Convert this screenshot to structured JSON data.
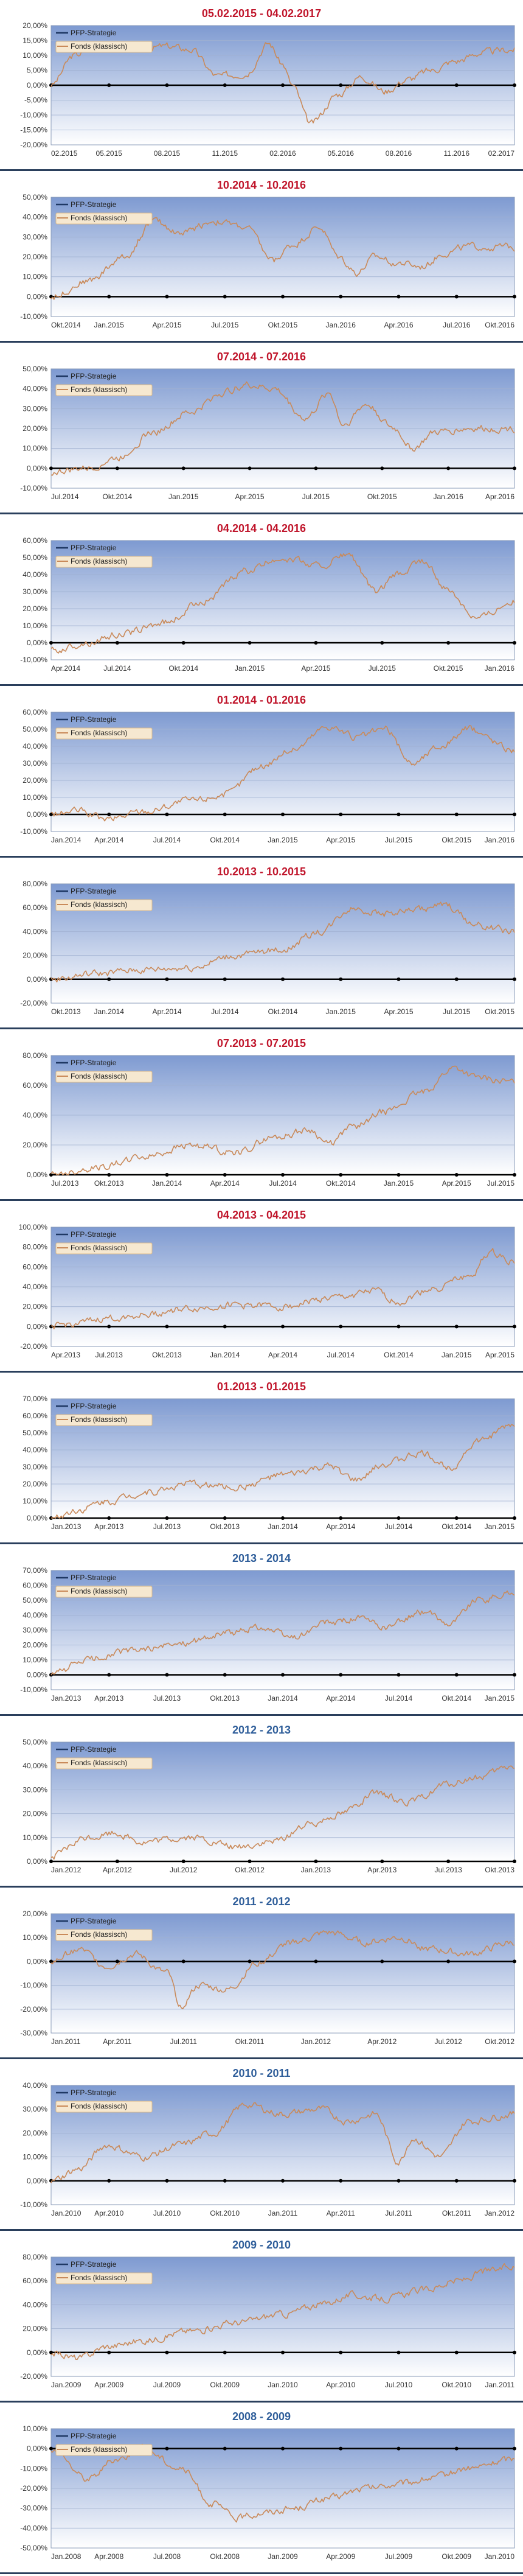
{
  "colors": {
    "fonds": "#c98a5a",
    "pfp": "#1f3864",
    "plot_bg_top": "#7e9ad1",
    "plot_bg_bottom": "#ffffff",
    "title_red": "#c0152b",
    "title_blue": "#2f5e9a"
  },
  "chart_data": [
    {
      "type": "line",
      "title": "05.02.2015 - 04.02.2017",
      "title_color": "red",
      "legend": [
        "PFP-Strategie",
        "Fonds (klassisch)"
      ],
      "x_ticks": [
        "02.2015",
        "05.2015",
        "08.2015",
        "11.2015",
        "02.2016",
        "05.2016",
        "08.2016",
        "11.2016",
        "02.2017"
      ],
      "y_ticks": [
        "20,00%",
        "15,00%",
        "10,00%",
        "5,00%",
        "0,00%",
        "-5,00%",
        "-10,00%",
        "-15,00%",
        "-20,00%"
      ],
      "ylim": [
        -20,
        20
      ],
      "series": [
        {
          "name": "Fonds (klassisch)",
          "x": [
            0,
            0.05,
            0.1,
            0.18,
            0.25,
            0.3,
            0.36,
            0.42,
            0.47,
            0.5,
            0.52,
            0.56,
            0.62,
            0.67,
            0.72,
            0.77,
            0.82,
            0.87,
            0.93,
            1
          ],
          "values": [
            0,
            10,
            14,
            12,
            13,
            12,
            3,
            4,
            14,
            7,
            0,
            -13,
            -3,
            3,
            -2,
            2,
            5,
            8,
            11,
            12
          ]
        }
      ]
    },
    {
      "type": "line",
      "title": "10.2014 - 10.2016",
      "title_color": "red",
      "legend": [
        "PFP-Strategie",
        "Fonds (klassisch)"
      ],
      "x_ticks": [
        "Okt.2014",
        "Jan.2015",
        "Apr.2015",
        "Jul.2015",
        "Okt.2015",
        "Jan.2016",
        "Apr.2016",
        "Jul.2016",
        "Okt.2016"
      ],
      "y_ticks": [
        "50,00%",
        "40,00%",
        "30,00%",
        "20,00%",
        "10,00%",
        "0,00%",
        "-10,00%"
      ],
      "ylim": [
        -10,
        50
      ],
      "series": [
        {
          "name": "Fonds (klassisch)",
          "x": [
            0,
            0.08,
            0.16,
            0.22,
            0.28,
            0.35,
            0.42,
            0.48,
            0.52,
            0.58,
            0.62,
            0.66,
            0.7,
            0.75,
            0.8,
            0.85,
            0.9,
            1
          ],
          "values": [
            0,
            8,
            20,
            38,
            32,
            38,
            35,
            18,
            26,
            35,
            20,
            12,
            20,
            17,
            15,
            22,
            25,
            25
          ]
        }
      ]
    },
    {
      "type": "line",
      "title": "07.2014 - 07.2016",
      "title_color": "red",
      "legend": [
        "PFP-Strategie",
        "Fonds (klassisch)"
      ],
      "x_ticks": [
        "Jul.2014",
        "Okt.2014",
        "Jan.2015",
        "Apr.2015",
        "Jul.2015",
        "Okt.2015",
        "Jan.2016",
        "Apr.2016"
      ],
      "y_ticks": [
        "50,00%",
        "40,00%",
        "30,00%",
        "20,00%",
        "10,00%",
        "0,00%",
        "-10,00%"
      ],
      "ylim": [
        -10,
        50
      ],
      "series": [
        {
          "name": "Fonds (klassisch)",
          "x": [
            0,
            0.08,
            0.14,
            0.22,
            0.3,
            0.37,
            0.42,
            0.48,
            0.55,
            0.6,
            0.63,
            0.68,
            0.74,
            0.78,
            0.83,
            0.9,
            1
          ],
          "values": [
            -2,
            0,
            5,
            18,
            28,
            38,
            42,
            40,
            25,
            38,
            22,
            32,
            20,
            10,
            18,
            20,
            20
          ]
        }
      ]
    },
    {
      "type": "line",
      "title": "04.2014 - 04.2016",
      "title_color": "red",
      "legend": [
        "PFP-Strategie",
        "Fonds (klassisch)"
      ],
      "x_ticks": [
        "Apr.2014",
        "Jul.2014",
        "Okt.2014",
        "Jan.2015",
        "Apr.2015",
        "Jul.2015",
        "Okt.2015",
        "Jan.2016"
      ],
      "y_ticks": [
        "60,00%",
        "50,00%",
        "40,00%",
        "30,00%",
        "20,00%",
        "10,00%",
        "0,00%",
        "-10,00%"
      ],
      "ylim": [
        -10,
        60
      ],
      "series": [
        {
          "name": "Fonds (klassisch)",
          "x": [
            0,
            0.08,
            0.15,
            0.25,
            0.33,
            0.42,
            0.5,
            0.58,
            0.64,
            0.7,
            0.75,
            0.8,
            0.86,
            0.92,
            1
          ],
          "values": [
            -5,
            0,
            5,
            12,
            25,
            42,
            50,
            45,
            52,
            30,
            40,
            48,
            30,
            15,
            25
          ]
        }
      ]
    },
    {
      "type": "line",
      "title": "01.2014 - 01.2016",
      "title_color": "red",
      "legend": [
        "PFP-Strategie",
        "Fonds (klassisch)"
      ],
      "x_ticks": [
        "Jan.2014",
        "Apr.2014",
        "Jul.2014",
        "Okt.2014",
        "Jan.2015",
        "Apr.2015",
        "Jul.2015",
        "Okt.2015",
        "Jan.2016"
      ],
      "y_ticks": [
        "60,00%",
        "50,00%",
        "40,00%",
        "30,00%",
        "20,00%",
        "10,00%",
        "0,00%",
        "-10,00%"
      ],
      "ylim": [
        -10,
        60
      ],
      "series": [
        {
          "name": "Fonds (klassisch)",
          "x": [
            0,
            0.06,
            0.12,
            0.2,
            0.3,
            0.38,
            0.45,
            0.52,
            0.6,
            0.66,
            0.72,
            0.78,
            0.84,
            0.9,
            1
          ],
          "values": [
            0,
            2,
            -3,
            2,
            8,
            12,
            28,
            38,
            52,
            45,
            50,
            30,
            40,
            50,
            38
          ]
        }
      ]
    },
    {
      "type": "line",
      "title": "10.2013 - 10.2015",
      "title_color": "red",
      "legend": [
        "PFP-Strategie",
        "Fonds (klassisch)"
      ],
      "x_ticks": [
        "Okt.2013",
        "Jan.2014",
        "Apr.2014",
        "Jul.2014",
        "Okt.2014",
        "Jan.2015",
        "Apr.2015",
        "Jul.2015",
        "Okt.2015"
      ],
      "y_ticks": [
        "80,00%",
        "60,00%",
        "40,00%",
        "20,00%",
        "0,00%",
        "-20,00%"
      ],
      "ylim": [
        -20,
        80
      ],
      "series": [
        {
          "name": "Fonds (klassisch)",
          "x": [
            0,
            0.1,
            0.2,
            0.3,
            0.4,
            0.5,
            0.58,
            0.65,
            0.72,
            0.78,
            0.85,
            0.92,
            1
          ],
          "values": [
            0,
            5,
            8,
            10,
            20,
            25,
            40,
            60,
            55,
            58,
            62,
            45,
            40
          ]
        }
      ]
    },
    {
      "type": "line",
      "title": "07.2013 - 07.2015",
      "title_color": "red",
      "legend": [
        "PFP-Strategie",
        "Fonds (klassisch)"
      ],
      "x_ticks": [
        "Jul.2013",
        "Okt.2013",
        "Jan.2014",
        "Apr.2014",
        "Jul.2014",
        "Okt.2014",
        "Jan.2015",
        "Apr.2015",
        "Jul.2015"
      ],
      "y_ticks": [
        "80,00%",
        "60,00%",
        "40,00%",
        "20,00%",
        "0,00%"
      ],
      "ylim": [
        0,
        80
      ],
      "series": [
        {
          "name": "Fonds (klassisch)",
          "x": [
            0,
            0.1,
            0.2,
            0.3,
            0.4,
            0.48,
            0.56,
            0.6,
            0.65,
            0.72,
            0.8,
            0.87,
            0.92,
            1
          ],
          "values": [
            0,
            5,
            12,
            20,
            15,
            25,
            30,
            20,
            32,
            42,
            55,
            72,
            65,
            62
          ]
        }
      ]
    },
    {
      "type": "line",
      "title": "04.2013 - 04.2015",
      "title_color": "red",
      "legend": [
        "PFP-Strategie",
        "Fonds (klassisch)"
      ],
      "x_ticks": [
        "Apr.2013",
        "Jul.2013",
        "Okt.2013",
        "Jan.2014",
        "Apr.2014",
        "Jul.2014",
        "Okt.2014",
        "Jan.2015",
        "Apr.2015"
      ],
      "y_ticks": [
        "100,00%",
        "80,00%",
        "60,00%",
        "40,00%",
        "20,00%",
        "0,00%",
        "-20,00%"
      ],
      "ylim": [
        -20,
        100
      ],
      "series": [
        {
          "name": "Fonds (klassisch)",
          "x": [
            0,
            0.06,
            0.12,
            0.2,
            0.3,
            0.4,
            0.5,
            0.6,
            0.7,
            0.75,
            0.82,
            0.9,
            0.95,
            1
          ],
          "values": [
            0,
            3,
            8,
            12,
            18,
            22,
            20,
            28,
            35,
            25,
            38,
            50,
            75,
            65
          ]
        }
      ]
    },
    {
      "type": "line",
      "title": "01.2013 - 01.2015",
      "title_color": "red",
      "legend": [
        "PFP-Strategie",
        "Fonds (klassisch)"
      ],
      "x_ticks": [
        "Jan.2013",
        "Apr.2013",
        "Jul.2013",
        "Okt.2013",
        "Jan.2014",
        "Apr.2014",
        "Jul.2014",
        "Okt.2014",
        "Jan.2015"
      ],
      "y_ticks": [
        "70,00%",
        "60,00%",
        "50,00%",
        "40,00%",
        "30,00%",
        "20,00%",
        "10,00%",
        "0,00%"
      ],
      "ylim": [
        0,
        70
      ],
      "series": [
        {
          "name": "Fonds (klassisch)",
          "x": [
            0,
            0.06,
            0.12,
            0.2,
            0.3,
            0.4,
            0.5,
            0.6,
            0.66,
            0.72,
            0.8,
            0.86,
            0.92,
            1
          ],
          "values": [
            0,
            5,
            10,
            15,
            20,
            18,
            25,
            30,
            22,
            32,
            38,
            30,
            45,
            55
          ]
        }
      ]
    },
    {
      "type": "line",
      "title": "2013 - 2014",
      "title_color": "blue",
      "legend": [
        "PFP-Strategie",
        "Fonds (klassisch)"
      ],
      "x_ticks": [
        "Jan.2013",
        "Apr.2013",
        "Jul.2013",
        "Okt.2013",
        "Jan.2014",
        "Apr.2014",
        "Jul.2014",
        "Okt.2014",
        "Jan.2015"
      ],
      "y_ticks": [
        "70,00%",
        "60,00%",
        "50,00%",
        "40,00%",
        "30,00%",
        "20,00%",
        "10,00%",
        "0,00%",
        "-10,00%"
      ],
      "ylim": [
        -10,
        70
      ],
      "series": [
        {
          "name": "Fonds (klassisch)",
          "x": [
            0,
            0.08,
            0.15,
            0.22,
            0.3,
            0.38,
            0.45,
            0.52,
            0.6,
            0.66,
            0.72,
            0.8,
            0.86,
            0.92,
            1
          ],
          "values": [
            0,
            10,
            15,
            18,
            22,
            28,
            32,
            25,
            35,
            38,
            32,
            42,
            35,
            50,
            55
          ]
        }
      ]
    },
    {
      "type": "line",
      "title": "2012 - 2013",
      "title_color": "blue",
      "legend": [
        "PFP-Strategie",
        "Fonds (klassisch)"
      ],
      "x_ticks": [
        "Jan.2012",
        "Apr.2012",
        "Jul.2012",
        "Okt.2012",
        "Jan.2013",
        "Apr.2013",
        "Jul.2013",
        "Okt.2013"
      ],
      "y_ticks": [
        "50,00%",
        "40,00%",
        "30,00%",
        "20,00%",
        "10,00%",
        "0,00%"
      ],
      "ylim": [
        0,
        50
      ],
      "series": [
        {
          "name": "Fonds (klassisch)",
          "x": [
            0,
            0.08,
            0.14,
            0.2,
            0.3,
            0.4,
            0.48,
            0.55,
            0.62,
            0.7,
            0.78,
            0.85,
            0.92,
            1
          ],
          "values": [
            2,
            10,
            12,
            8,
            10,
            6,
            8,
            15,
            20,
            28,
            25,
            32,
            35,
            40
          ]
        }
      ]
    },
    {
      "type": "line",
      "title": "2011 - 2012",
      "title_color": "blue",
      "legend": [
        "PFP-Strategie",
        "Fonds (klassisch)"
      ],
      "x_ticks": [
        "Jan.2011",
        "Apr.2011",
        "Jul.2011",
        "Okt.2011",
        "Jan.2012",
        "Apr.2012",
        "Jul.2012",
        "Okt.2012"
      ],
      "y_ticks": [
        "20,00%",
        "10,00%",
        "0,00%",
        "-10,00%",
        "-20,00%",
        "-30,00%"
      ],
      "ylim": [
        -30,
        20
      ],
      "series": [
        {
          "name": "Fonds (klassisch)",
          "x": [
            0,
            0.06,
            0.12,
            0.18,
            0.25,
            0.28,
            0.32,
            0.38,
            0.45,
            0.52,
            0.6,
            0.68,
            0.75,
            0.82,
            0.9,
            1
          ],
          "values": [
            0,
            5,
            -2,
            3,
            -5,
            -18,
            -10,
            -12,
            0,
            8,
            12,
            8,
            10,
            5,
            3,
            8
          ]
        }
      ]
    },
    {
      "type": "line",
      "title": "2010 - 2011",
      "title_color": "blue",
      "legend": [
        "PFP-Strategie",
        "Fonds (klassisch)"
      ],
      "x_ticks": [
        "Jan.2010",
        "Apr.2010",
        "Jul.2010",
        "Okt.2010",
        "Jan.2011",
        "Apr.2011",
        "Jul.2011",
        "Okt.2011",
        "Jan.2012"
      ],
      "y_ticks": [
        "40,00%",
        "30,00%",
        "20,00%",
        "10,00%",
        "0,00%",
        "-10,00%"
      ],
      "ylim": [
        -10,
        40
      ],
      "series": [
        {
          "name": "Fonds (klassisch)",
          "x": [
            0,
            0.06,
            0.12,
            0.2,
            0.28,
            0.35,
            0.42,
            0.5,
            0.58,
            0.64,
            0.7,
            0.75,
            0.78,
            0.84,
            0.9,
            1
          ],
          "values": [
            0,
            5,
            15,
            10,
            15,
            20,
            32,
            28,
            30,
            25,
            28,
            8,
            18,
            10,
            25,
            28
          ]
        }
      ]
    },
    {
      "type": "line",
      "title": "2009 - 2010",
      "title_color": "blue",
      "legend": [
        "PFP-Strategie",
        "Fonds (klassisch)"
      ],
      "x_ticks": [
        "Jan.2009",
        "Apr.2009",
        "Jul.2009",
        "Okt.2009",
        "Jan.2010",
        "Apr.2010",
        "Jul.2010",
        "Okt.2010",
        "Jan.2011"
      ],
      "y_ticks": [
        "80,00%",
        "60,00%",
        "40,00%",
        "20,00%",
        "0,00%",
        "-20,00%"
      ],
      "ylim": [
        -20,
        80
      ],
      "series": [
        {
          "name": "Fonds (klassisch)",
          "x": [
            0,
            0.06,
            0.12,
            0.2,
            0.3,
            0.4,
            0.5,
            0.58,
            0.65,
            0.72,
            0.8,
            0.88,
            0.94,
            1
          ],
          "values": [
            0,
            -5,
            5,
            10,
            18,
            25,
            32,
            40,
            48,
            45,
            52,
            60,
            68,
            72
          ]
        }
      ]
    },
    {
      "type": "line",
      "title": "2008 - 2009",
      "title_color": "blue",
      "legend": [
        "PFP-Strategie",
        "Fonds (klassisch)"
      ],
      "x_ticks": [
        "Jan.2008",
        "Apr.2008",
        "Jul.2008",
        "Okt.2008",
        "Jan.2009",
        "Apr.2009",
        "Jul.2009",
        "Okt.2009",
        "Jan.2010"
      ],
      "y_ticks": [
        "10,00%",
        "0,00%",
        "-10,00%",
        "-20,00%",
        "-30,00%",
        "-40,00%",
        "-50,00%"
      ],
      "ylim": [
        -50,
        10
      ],
      "series": [
        {
          "name": "Fonds (klassisch)",
          "x": [
            0,
            0.08,
            0.14,
            0.2,
            0.28,
            0.35,
            0.4,
            0.46,
            0.52,
            0.6,
            0.68,
            0.75,
            0.82,
            0.9,
            1
          ],
          "values": [
            0,
            -15,
            -5,
            0,
            -10,
            -28,
            -35,
            -32,
            -30,
            -25,
            -20,
            -18,
            -15,
            -10,
            -5
          ]
        }
      ]
    }
  ]
}
